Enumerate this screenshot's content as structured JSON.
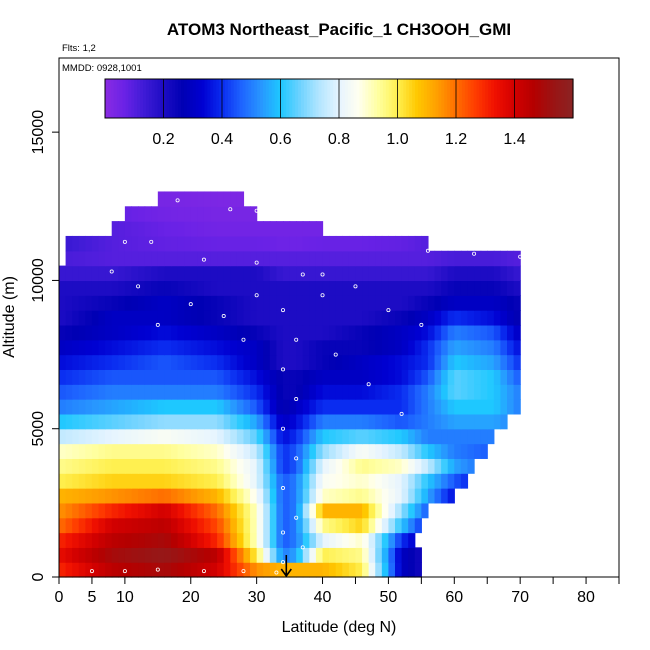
{
  "chart_data": {
    "type": "heatmap",
    "title": "ATOM3 Northeast_Pacific_1 CH3OOH_GMI",
    "flights_label": "Flts: 1,2",
    "dates_label": "MMDD: 0928,1001",
    "xlabel": "Latitude (deg N)",
    "ylabel": "Altitude (m)",
    "xlim": [
      0,
      85
    ],
    "ylim": [
      0,
      17500
    ],
    "x_ticks": [
      0,
      5,
      10,
      20,
      30,
      40,
      50,
      60,
      70,
      80
    ],
    "x_tick_labels": [
      "0",
      "5",
      "10",
      "20",
      "30",
      "40",
      "50",
      "60",
      "70",
      "80"
    ],
    "y_ticks": [
      0,
      5000,
      10000,
      15000
    ],
    "y_tick_labels": [
      "0",
      "5000",
      "10000",
      "15000"
    ],
    "colorbar": {
      "range": [
        0,
        1.6
      ],
      "ticks": [
        0.2,
        0.4,
        0.6,
        0.8,
        1.0,
        1.2,
        1.4
      ],
      "tick_labels": [
        "0.2",
        "0.4",
        "0.6",
        "0.8",
        "1.0",
        "1.2",
        "1.4"
      ],
      "colors": [
        "#8a2be2",
        "#6a22e6",
        "#3f1bd6",
        "#1d0cc4",
        "#0000b4",
        "#0000d2",
        "#0a2cf0",
        "#1e64ff",
        "#2896ff",
        "#1ec8ff",
        "#6ed2ff",
        "#b4e6ff",
        "#e6f4ff",
        "#fffff0",
        "#ffffa0",
        "#fff050",
        "#ffc800",
        "#ffa000",
        "#ff6e00",
        "#ff3c00",
        "#f01000",
        "#d20000",
        "#b40000",
        "#9a1414",
        "#8b2323"
      ]
    },
    "altitude_levels": [
      0,
      500,
      1000,
      1500,
      2000,
      2500,
      3000,
      3500,
      4000,
      4500,
      5000,
      5500,
      6000,
      6500,
      7000,
      7500,
      8000,
      8500,
      9000,
      9500,
      10000,
      10500,
      11000,
      11500,
      12000,
      12500
    ],
    "lat_extent_by_level": [
      [
        0,
        55
      ],
      [
        0,
        55
      ],
      [
        0,
        54
      ],
      [
        0,
        55
      ],
      [
        0,
        56
      ],
      [
        0,
        60
      ],
      [
        0,
        62
      ],
      [
        0,
        63
      ],
      [
        0,
        65
      ],
      [
        0,
        66
      ],
      [
        0,
        68
      ],
      [
        0,
        70
      ],
      [
        0,
        70
      ],
      [
        0,
        70
      ],
      [
        0,
        70
      ],
      [
        0,
        70
      ],
      [
        0,
        70
      ],
      [
        0,
        70
      ],
      [
        0,
        70
      ],
      [
        0,
        70
      ],
      [
        0,
        70
      ],
      [
        1,
        70
      ],
      [
        1,
        56
      ],
      [
        8,
        40
      ],
      [
        10,
        30
      ],
      [
        15,
        28
      ]
    ],
    "value_profiles": {
      "description_hidden": false,
      "lat_nodes": [
        0,
        8,
        16,
        24,
        30,
        34,
        36,
        40,
        46,
        52,
        56,
        60,
        66,
        70
      ],
      "rows": [
        [
          1.3,
          1.45,
          1.5,
          1.4,
          1.15,
          1.1,
          1.1,
          1.1,
          1.0,
          0.3,
          0.2,
          0.2,
          0.2,
          0.2
        ],
        [
          1.35,
          1.5,
          1.55,
          1.45,
          1.0,
          0.5,
          0.55,
          1.0,
          0.95,
          0.3,
          0.2,
          0.2,
          0.2,
          0.2
        ],
        [
          1.3,
          1.45,
          1.5,
          1.3,
          0.9,
          0.45,
          0.5,
          0.8,
          0.9,
          0.4,
          0.25,
          0.2,
          0.2,
          0.2
        ],
        [
          1.2,
          1.4,
          1.45,
          1.25,
          0.9,
          0.45,
          0.5,
          0.95,
          1.05,
          0.6,
          0.35,
          0.25,
          0.2,
          0.2
        ],
        [
          1.15,
          1.3,
          1.4,
          1.2,
          0.9,
          0.45,
          0.5,
          1.1,
          1.1,
          0.7,
          0.45,
          0.3,
          0.2,
          0.2
        ],
        [
          1.1,
          1.15,
          1.2,
          1.1,
          0.85,
          0.45,
          0.5,
          0.9,
          0.95,
          0.8,
          0.55,
          0.35,
          0.25,
          0.2
        ],
        [
          1.0,
          1.05,
          1.05,
          1.0,
          0.8,
          0.45,
          0.5,
          0.85,
          0.9,
          0.8,
          0.6,
          0.45,
          0.3,
          0.25
        ],
        [
          0.95,
          1.0,
          1.0,
          0.95,
          0.8,
          0.4,
          0.45,
          0.8,
          0.95,
          0.9,
          0.75,
          0.55,
          0.45,
          0.4
        ],
        [
          0.9,
          0.95,
          0.95,
          0.9,
          0.75,
          0.4,
          0.45,
          0.7,
          0.85,
          0.75,
          0.6,
          0.5,
          0.45,
          0.4
        ],
        [
          0.75,
          0.8,
          0.85,
          0.8,
          0.65,
          0.35,
          0.4,
          0.6,
          0.65,
          0.6,
          0.5,
          0.5,
          0.5,
          0.45
        ],
        [
          0.6,
          0.65,
          0.7,
          0.7,
          0.55,
          0.3,
          0.35,
          0.5,
          0.5,
          0.45,
          0.5,
          0.55,
          0.55,
          0.5
        ],
        [
          0.5,
          0.55,
          0.6,
          0.6,
          0.45,
          0.25,
          0.3,
          0.4,
          0.4,
          0.4,
          0.5,
          0.6,
          0.6,
          0.5
        ],
        [
          0.45,
          0.5,
          0.5,
          0.5,
          0.4,
          0.25,
          0.25,
          0.35,
          0.35,
          0.4,
          0.5,
          0.65,
          0.6,
          0.5
        ],
        [
          0.4,
          0.45,
          0.45,
          0.45,
          0.35,
          0.25,
          0.25,
          0.3,
          0.3,
          0.35,
          0.45,
          0.65,
          0.6,
          0.45
        ],
        [
          0.35,
          0.4,
          0.45,
          0.4,
          0.3,
          0.2,
          0.2,
          0.25,
          0.3,
          0.35,
          0.4,
          0.6,
          0.55,
          0.4
        ],
        [
          0.3,
          0.35,
          0.4,
          0.35,
          0.3,
          0.2,
          0.2,
          0.25,
          0.25,
          0.3,
          0.4,
          0.55,
          0.5,
          0.35
        ],
        [
          0.25,
          0.3,
          0.35,
          0.3,
          0.25,
          0.2,
          0.2,
          0.2,
          0.25,
          0.3,
          0.35,
          0.5,
          0.45,
          0.3
        ],
        [
          0.2,
          0.3,
          0.3,
          0.25,
          0.2,
          0.2,
          0.2,
          0.2,
          0.2,
          0.25,
          0.3,
          0.4,
          0.35,
          0.25
        ],
        [
          0.2,
          0.25,
          0.3,
          0.25,
          0.2,
          0.2,
          0.2,
          0.2,
          0.2,
          0.2,
          0.25,
          0.3,
          0.3,
          0.25
        ],
        [
          0.2,
          0.2,
          0.25,
          0.2,
          0.2,
          0.2,
          0.2,
          0.2,
          0.2,
          0.2,
          0.2,
          0.25,
          0.25,
          0.2
        ],
        [
          0.15,
          0.15,
          0.2,
          0.2,
          0.2,
          0.15,
          0.15,
          0.15,
          0.15,
          0.15,
          0.15,
          0.2,
          0.2,
          0.15
        ],
        [
          0.12,
          0.1,
          0.1,
          0.1,
          0.1,
          0.1,
          0.1,
          0.1,
          0.1,
          0.1,
          0.1,
          0.12,
          0.12,
          0.1
        ],
        [
          0.15,
          0.1,
          0.08,
          0.07,
          0.07,
          0.06,
          0.06,
          0.07,
          0.07,
          0.08,
          0.1,
          0.1,
          0.1,
          0.1
        ],
        [
          0.15,
          0.1,
          0.07,
          0.05,
          0.05,
          0.05,
          0.05,
          0.05,
          0.05,
          0.05,
          0.05,
          0.05,
          0.05,
          0.05
        ],
        [
          0.1,
          0.08,
          0.05,
          0.04,
          0.04,
          0.04,
          0.04,
          0.04,
          0.04,
          0.04,
          0.04,
          0.04,
          0.04,
          0.04
        ],
        [
          0.05,
          0.05,
          0.04,
          0.03,
          0.03,
          0.03,
          0.03,
          0.03,
          0.03,
          0.03,
          0.03,
          0.03,
          0.03,
          0.03
        ]
      ]
    },
    "flight_track_points": [
      [
        10,
        11300
      ],
      [
        14,
        11300
      ],
      [
        22,
        10700
      ],
      [
        30,
        10600
      ],
      [
        18,
        12700
      ],
      [
        26,
        12400
      ],
      [
        30,
        12350
      ],
      [
        37,
        10200
      ],
      [
        40,
        10200
      ],
      [
        56,
        11000
      ],
      [
        63,
        10900
      ],
      [
        70,
        10800
      ],
      [
        34,
        9000
      ],
      [
        34,
        7000
      ],
      [
        34,
        5000
      ],
      [
        34,
        3000
      ],
      [
        34,
        1500
      ],
      [
        34,
        500
      ],
      [
        36,
        8000
      ],
      [
        36,
        6000
      ],
      [
        36,
        4000
      ],
      [
        36,
        2000
      ],
      [
        37,
        1000
      ],
      [
        5,
        200
      ],
      [
        10,
        200
      ],
      [
        15,
        250
      ],
      [
        22,
        200
      ],
      [
        28,
        200
      ],
      [
        33,
        150
      ],
      [
        40,
        9500
      ],
      [
        45,
        9800
      ],
      [
        50,
        9000
      ],
      [
        55,
        8500
      ],
      [
        42,
        7500
      ],
      [
        47,
        6500
      ],
      [
        52,
        5500
      ],
      [
        20,
        9200
      ],
      [
        25,
        8800
      ],
      [
        15,
        8500
      ],
      [
        12,
        9800
      ],
      [
        8,
        10300
      ],
      [
        28,
        8000
      ],
      [
        30,
        9500
      ]
    ],
    "marker_lat": 34.5
  }
}
